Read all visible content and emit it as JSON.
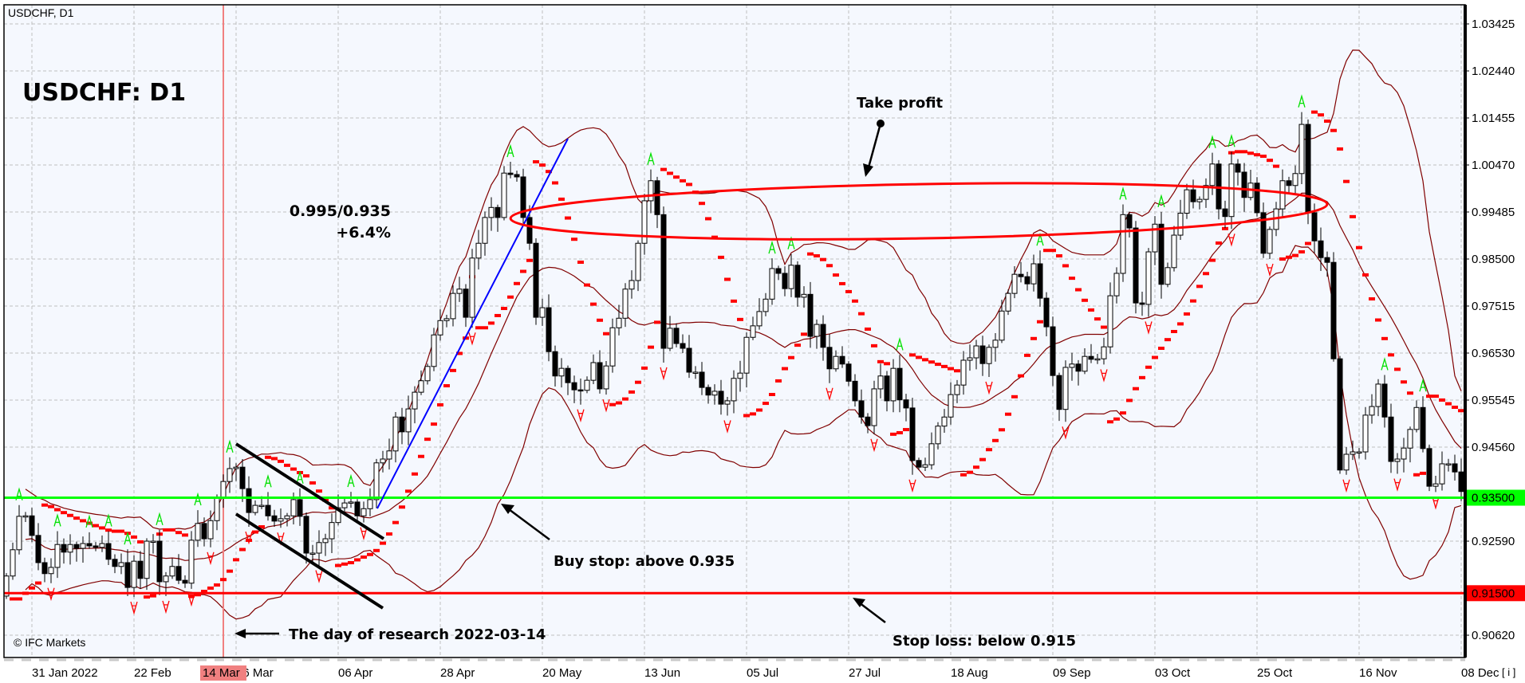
{
  "window": {
    "title": "USDCHF, D1"
  },
  "watermark": "© IFC Markets",
  "annotations": {
    "symbol_title": "USDCHF: D1",
    "ratio": "0.995/0.935",
    "ratio_pct": "+6.4%",
    "take_profit": "Take profit",
    "buy_stop": "Buy stop: above 0.935",
    "stop_loss": "Stop loss: below 0.915",
    "research_day": "The day of research 2022-03-14"
  },
  "colors": {
    "background": "#f5f8fe",
    "bull_candle": "#ffffff",
    "bear_candle": "#000000",
    "bollinger": "#800000",
    "sar": "#ff0000",
    "fractal_up": "#00e000",
    "fractal_down": "#ff0000",
    "buy_level": "#00ff00",
    "stop_level": "#ff0000",
    "research_line": "#f08080",
    "trend_line": "#0000ff",
    "take_profit_ellipse": "#ff0000"
  },
  "chart_data": {
    "type": "candlestick",
    "symbol": "USDCHF",
    "timeframe": "D1",
    "indicators": [
      "Bollinger Bands",
      "Parabolic SAR",
      "Fractals"
    ],
    "grid": true,
    "ylim": [
      0.902,
      1.039
    ],
    "y_ticks": [
      "1.03425",
      "1.02440",
      "1.01455",
      "1.00470",
      "0.99485",
      "0.98500",
      "0.97515",
      "0.96530",
      "0.95545",
      "0.94560",
      "0.92590",
      "0.90620"
    ],
    "x_ticks": [
      "31 Jan 2022",
      "22 Feb",
      "16 Mar",
      "06 Apr",
      "28 Apr",
      "20 May",
      "13 Jun",
      "05 Jul",
      "27 Jul",
      "18 Aug",
      "09 Sep",
      "03 Oct",
      "25 Oct",
      "16 Nov",
      "08 Dec"
    ],
    "highlighted_date": "14 Mar",
    "levels": {
      "buy_stop": {
        "value": 0.935,
        "label": "0.93500"
      },
      "stop_loss": {
        "value": 0.915,
        "label": "0.91500"
      },
      "take_profit": 0.995
    },
    "first_open": 0.9144,
    "closes": [
      0.9186,
      0.9241,
      0.9311,
      0.9312,
      0.9271,
      0.9214,
      0.9191,
      0.9204,
      0.9252,
      0.9236,
      0.9252,
      0.9244,
      0.9254,
      0.9249,
      0.9246,
      0.9254,
      0.9221,
      0.9206,
      0.9214,
      0.9162,
      0.9217,
      0.9181,
      0.9259,
      0.9259,
      0.9174,
      0.9186,
      0.9206,
      0.9177,
      0.9171,
      0.9261,
      0.9296,
      0.9264,
      0.9302,
      0.9351,
      0.9384,
      0.9411,
      0.9414,
      0.9369,
      0.9319,
      0.9334,
      0.9334,
      0.9312,
      0.9301,
      0.9306,
      0.9312,
      0.9346,
      0.9311,
      0.9234,
      0.9234,
      0.9256,
      0.9264,
      0.9298,
      0.9329,
      0.9339,
      0.9341,
      0.9312,
      0.9327,
      0.9346,
      0.9423,
      0.9431,
      0.9448,
      0.9519,
      0.9488,
      0.9536,
      0.9571,
      0.9595,
      0.9625,
      0.9691,
      0.9721,
      0.9725,
      0.9778,
      0.9787,
      0.9728,
      0.9852,
      0.9883,
      0.9937,
      0.9958,
      0.9937,
      1.003,
      1.0027,
      1.0022,
      0.9937,
      0.9883,
      0.9728,
      0.9748,
      0.9656,
      0.9605,
      0.9621,
      0.9591,
      0.9576,
      0.9575,
      0.9596,
      0.9633,
      0.9578,
      0.9626,
      0.9706,
      0.9726,
      0.9787,
      0.9805,
      0.9883,
      0.9972,
      1.0014,
      0.9943,
      0.9663,
      0.9705,
      0.9673,
      0.9663,
      0.9613,
      0.9613,
      0.9581,
      0.9565,
      0.9573,
      0.9546,
      0.9553,
      0.96,
      0.9611,
      0.9686,
      0.971,
      0.974,
      0.9766,
      0.983,
      0.982,
      0.9788,
      0.9837,
      0.977,
      0.9776,
      0.9688,
      0.9713,
      0.9665,
      0.962,
      0.9646,
      0.963,
      0.9594,
      0.9553,
      0.9519,
      0.9501,
      0.9578,
      0.9605,
      0.9553,
      0.9621,
      0.9555,
      0.9538,
      0.9428,
      0.9414,
      0.9419,
      0.9463,
      0.95,
      0.9519,
      0.9566,
      0.9586,
      0.9638,
      0.9643,
      0.9668,
      0.9631,
      0.9665,
      0.968,
      0.9741,
      0.9778,
      0.9818,
      0.9813,
      0.9798,
      0.984,
      0.9768,
      0.9708,
      0.9606,
      0.9535,
      0.9623,
      0.963,
      0.9615,
      0.9646,
      0.964,
      0.9641,
      0.9666,
      0.9773,
      0.982,
      0.9943,
      0.9915,
      0.9758,
      0.9755,
      0.9865,
      0.9923,
      0.9797,
      0.9832,
      0.99,
      0.9946,
      0.9995,
      0.997,
      0.9975,
      1.0004,
      1.0049,
      0.9955,
      0.9939,
      1.0049,
      1.0032,
      0.9979,
      1.0009,
      0.9947,
      0.9862,
      0.9912,
      0.9955,
      1.0014,
      1.0004,
      1.0029,
      1.0132,
      0.9947,
      0.9888,
      0.9853,
      0.9843,
      0.9641,
      0.9408,
      0.9441,
      0.9446,
      0.9446,
      0.9523,
      0.9541,
      0.9588,
      0.9519,
      0.9426,
      0.9431,
      0.9454,
      0.9493,
      0.9539,
      0.9453,
      0.9374,
      0.9379,
      0.9421,
      0.9421,
      0.9404,
      0.9363
    ]
  }
}
